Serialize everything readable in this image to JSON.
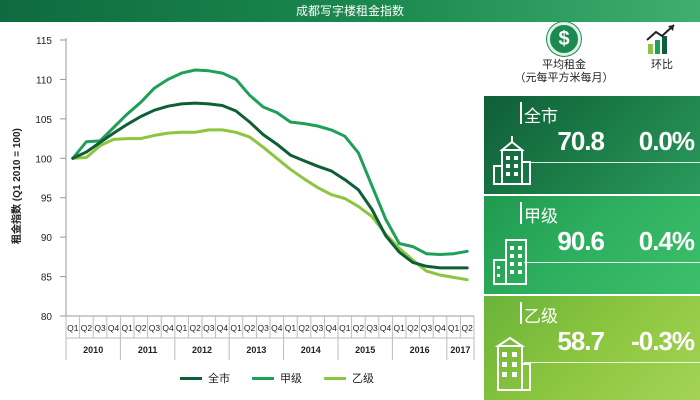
{
  "title": "成都写字楼租金指数",
  "chart_data": {
    "type": "line",
    "ylabel": "租金指数 (Q1 2010 = 100)",
    "ylim": [
      80,
      115
    ],
    "yticks": [
      "80",
      "85",
      "90",
      "95",
      "100",
      "105",
      "110",
      "115"
    ],
    "quarters": [
      "Q1",
      "Q2",
      "Q3",
      "Q4",
      "Q1",
      "Q2",
      "Q3",
      "Q4",
      "Q1",
      "Q2",
      "Q3",
      "Q4",
      "Q1",
      "Q2",
      "Q3",
      "Q4",
      "Q1",
      "Q2",
      "Q3",
      "Q4",
      "Q1",
      "Q2",
      "Q3",
      "Q4",
      "Q1",
      "Q2",
      "Q3",
      "Q4",
      "Q1",
      "Q2"
    ],
    "years": [
      {
        "label": "2010",
        "span": 4
      },
      {
        "label": "2011",
        "span": 4
      },
      {
        "label": "2012",
        "span": 4
      },
      {
        "label": "2013",
        "span": 4
      },
      {
        "label": "2014",
        "span": 4
      },
      {
        "label": "2015",
        "span": 4
      },
      {
        "label": "2016",
        "span": 4
      },
      {
        "label": "2017",
        "span": 2
      }
    ],
    "series": [
      {
        "name": "全市",
        "color": "#0f5e37",
        "values": [
          100,
          100.8,
          102.0,
          103.2,
          104.3,
          105.3,
          106.1,
          106.6,
          106.9,
          107.0,
          106.9,
          106.7,
          106.0,
          104.6,
          103.0,
          101.8,
          100.4,
          99.7,
          99.0,
          98.4,
          97.3,
          96.0,
          93.5,
          90.2,
          88.1,
          86.8,
          86.3,
          86.1,
          86.1,
          86.1
        ]
      },
      {
        "name": "甲级",
        "color": "#1fa05a",
        "values": [
          100,
          102.1,
          102.2,
          103.9,
          105.6,
          107.1,
          108.9,
          110.0,
          110.8,
          111.2,
          111.1,
          110.8,
          110.0,
          108.0,
          106.5,
          105.8,
          104.6,
          104.4,
          104.1,
          103.6,
          102.8,
          100.7,
          96.5,
          92.3,
          89.2,
          88.8,
          87.9,
          87.8,
          87.9,
          88.2
        ]
      },
      {
        "name": "乙级",
        "color": "#8cc63f",
        "values": [
          100,
          100.1,
          101.6,
          102.4,
          102.5,
          102.5,
          102.9,
          103.2,
          103.3,
          103.3,
          103.6,
          103.6,
          103.3,
          102.7,
          101.4,
          100.0,
          98.6,
          97.4,
          96.3,
          95.4,
          94.9,
          93.9,
          92.6,
          90.4,
          88.6,
          87.1,
          85.7,
          85.2,
          84.9,
          84.6
        ]
      }
    ]
  },
  "header": {
    "avg_rent_label": "平均租金",
    "avg_rent_unit": "（元每平方米每月）",
    "qoq_label": "环比",
    "dollar_symbol": "$"
  },
  "cards": [
    {
      "name": "全市",
      "value": "70.8",
      "change": "0.0%"
    },
    {
      "name": "甲级",
      "value": "90.6",
      "change": "0.4%"
    },
    {
      "name": "乙级",
      "value": "58.7",
      "change": "-0.3%"
    }
  ]
}
